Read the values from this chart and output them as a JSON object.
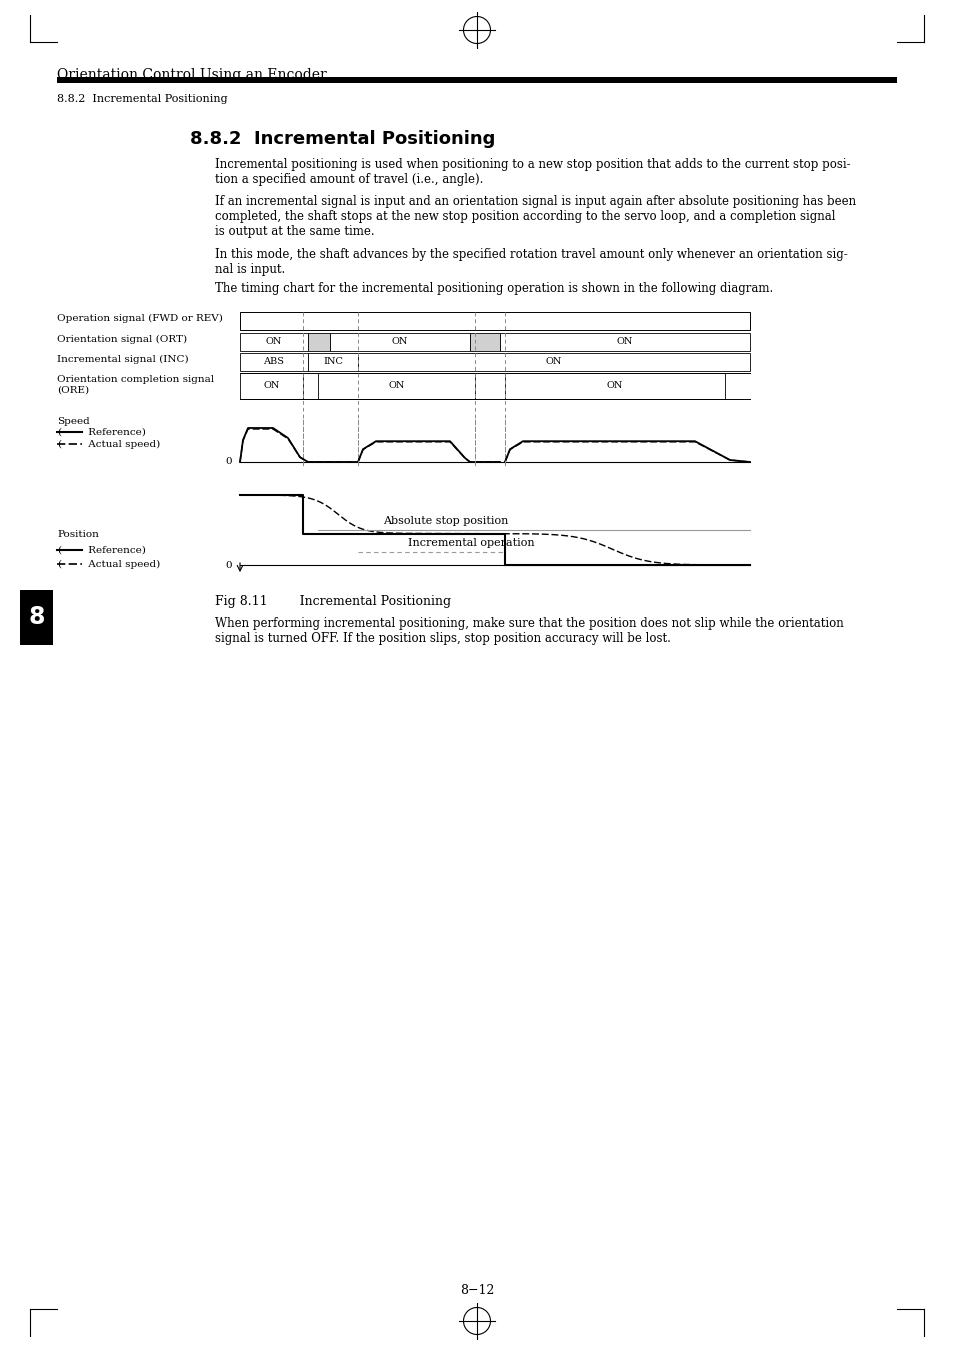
{
  "title_header": "Orientation Control Using an Encoder",
  "subtitle_header": "8.8.2  Incremental Positioning",
  "section_title": "8.8.2  Incremental Positioning",
  "para1": "Incremental positioning is used when positioning to a new stop position that adds to the current stop posi-\ntion a specified amount of travel (i.e., angle).",
  "para2": "If an incremental signal is input and an orientation signal is input again after absolute positioning has been\ncompleted, the shaft stops at the new stop position according to the servo loop, and a completion signal\nis output at the same time.",
  "para3": "In this mode, the shaft advances by the specified rotation travel amount only whenever an orientation sig-\nnal is input.",
  "para4": "The timing chart for the incremental positioning operation is shown in the following diagram.",
  "fig_caption": "Fig 8.11        Incremental Positioning",
  "note_text": "When performing incremental positioning, make sure that the position does not slip while the orientation\nsignal is turned OFF. If the position slips, stop position accuracy will be lost.",
  "page_number": "8−12",
  "chapter_number": "8",
  "bg_color": "#ffffff",
  "text_color": "#000000",
  "diagram_labels": {
    "op_signal": "Operation signal (FWD or REV)",
    "ort_signal": "Orientation signal (ORT)",
    "inc_signal": "Incremental signal (INC)",
    "ore_signal": "Orientation completion signal\n(ORE)",
    "speed_label": "Speed",
    "speed_ref": "(——  Reference)",
    "speed_act": "(– –  Actual speed)",
    "abs_stop": "Absolute stop position",
    "inc_op": "Incremental operation",
    "pos_label": "Position",
    "pos_ref": "(——  Reference)",
    "pos_act": "(– –  Actual speed)"
  }
}
